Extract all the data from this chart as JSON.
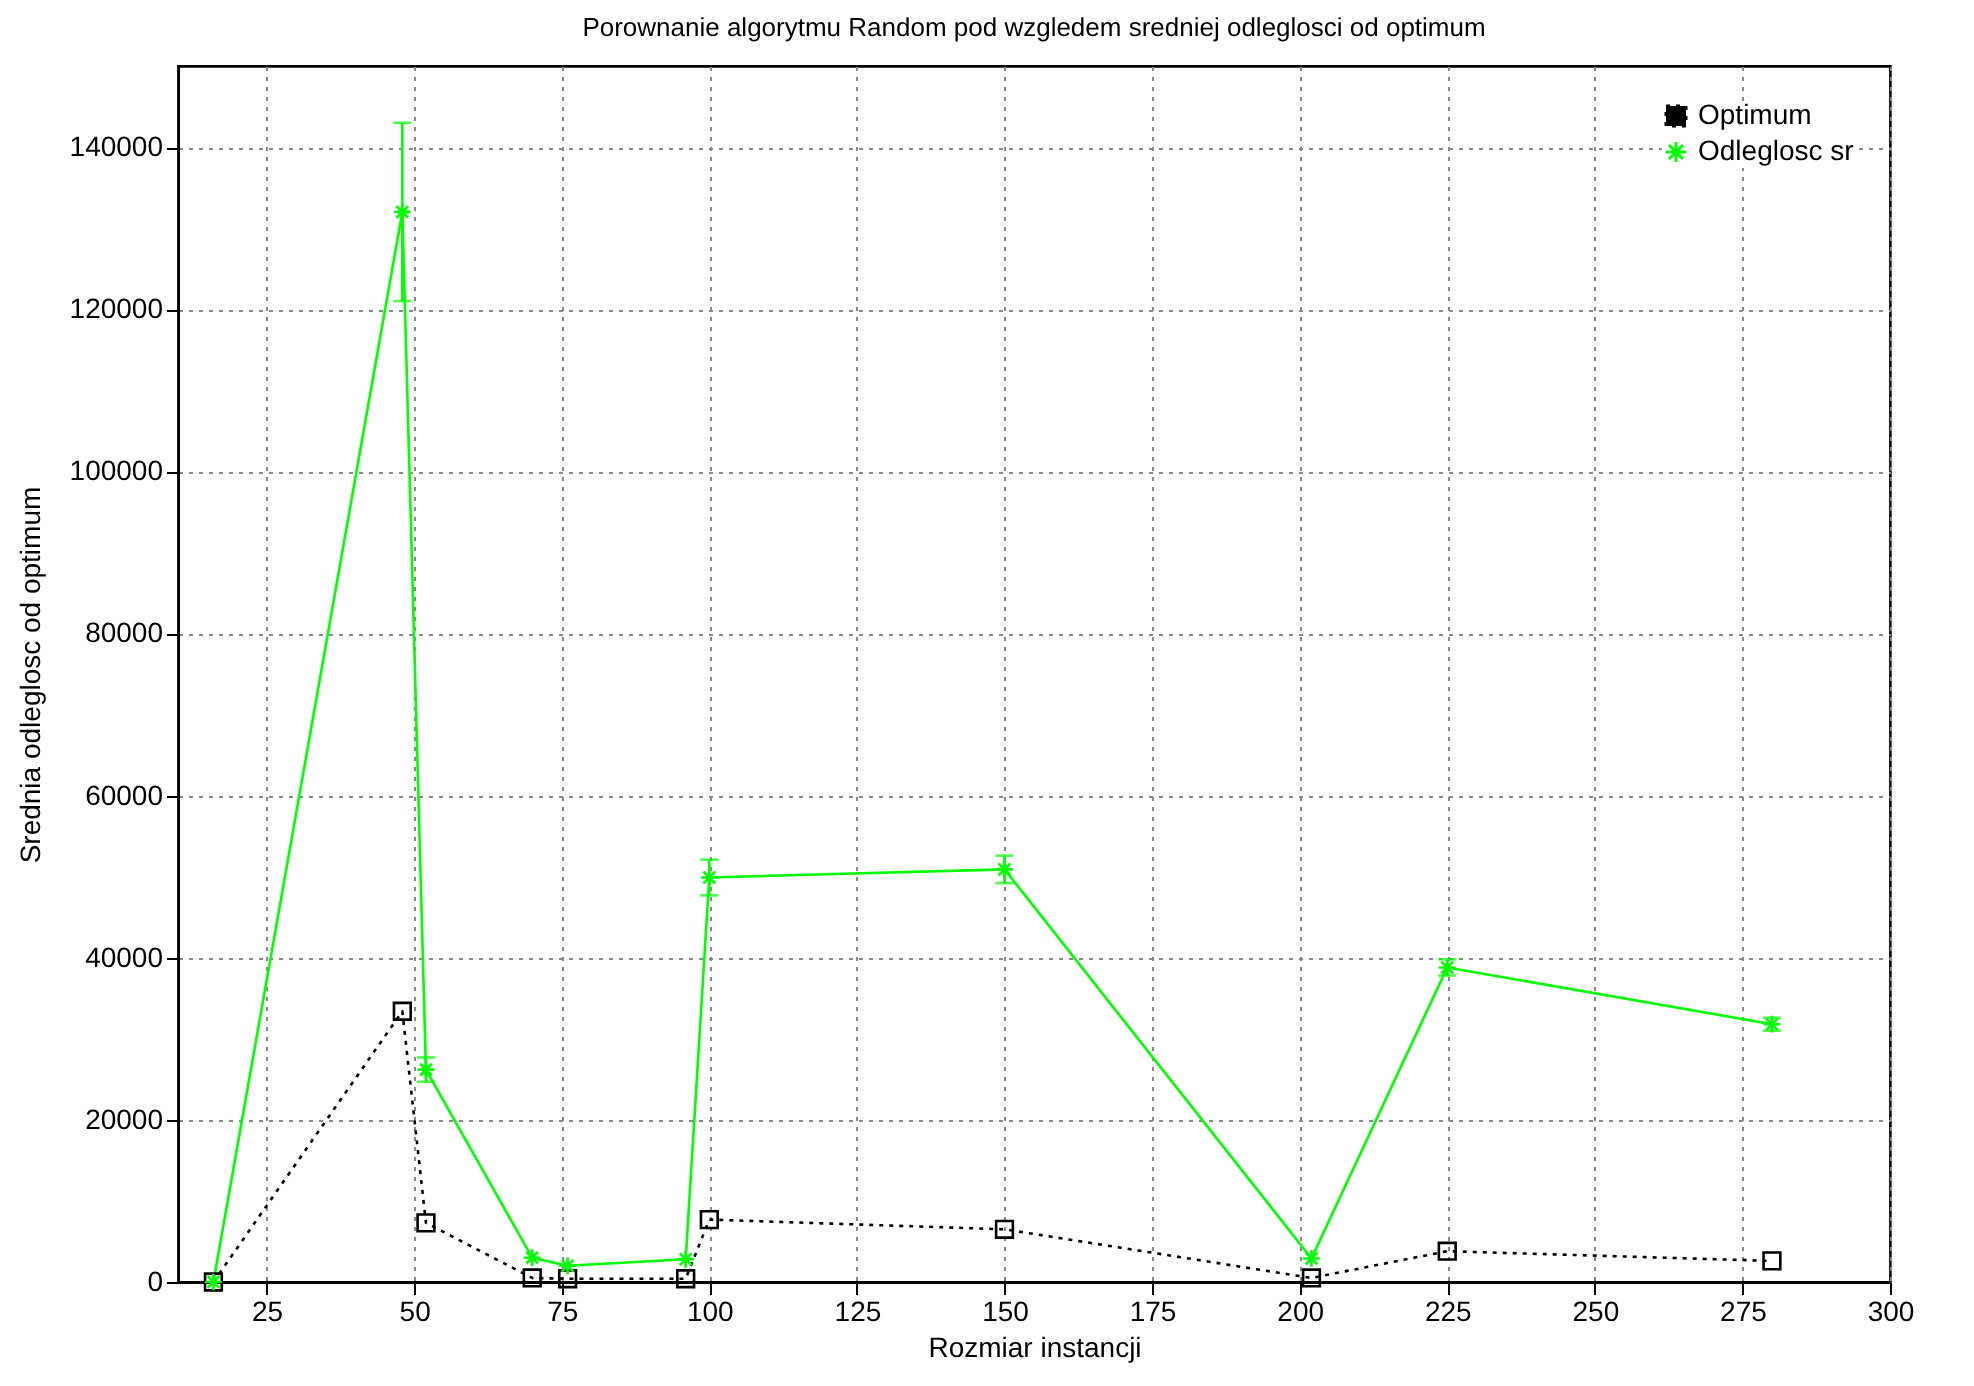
{
  "chart_data": {
    "type": "line",
    "title": "Porownanie algorytmu Random pod wzgledem sredniej odleglosci od optimum",
    "xlabel": "Rozmiar instancji",
    "ylabel": "Srednia odleglosc od optimum",
    "x": [
      16,
      48,
      52,
      70,
      76,
      96,
      100,
      150,
      202,
      225,
      280
    ],
    "series": [
      {
        "name": "Optimum",
        "color": "#000000",
        "marker": "square",
        "line_style": "dotted",
        "values": [
          0,
          33400,
          7300,
          500,
          400,
          400,
          7700,
          6500,
          500,
          3800,
          2600
        ]
      },
      {
        "name": "Odleglosc sr",
        "color": "#00ff00",
        "marker": "cross",
        "line_style": "solid",
        "values": [
          0,
          132000,
          26200,
          3000,
          2000,
          2800,
          49900,
          50900,
          2900,
          38800,
          31800
        ],
        "errors": [
          null,
          11000,
          1500,
          null,
          null,
          null,
          2200,
          1700,
          null,
          1000,
          800
        ]
      }
    ],
    "xlim": [
      10,
      300
    ],
    "xticks": [
      25,
      50,
      75,
      100,
      125,
      150,
      175,
      200,
      225,
      250,
      275,
      300
    ],
    "ylim": [
      0,
      150000
    ],
    "yticks": [
      0,
      20000,
      40000,
      60000,
      80000,
      100000,
      120000,
      140000
    ],
    "grid": true,
    "legend": "top right"
  }
}
